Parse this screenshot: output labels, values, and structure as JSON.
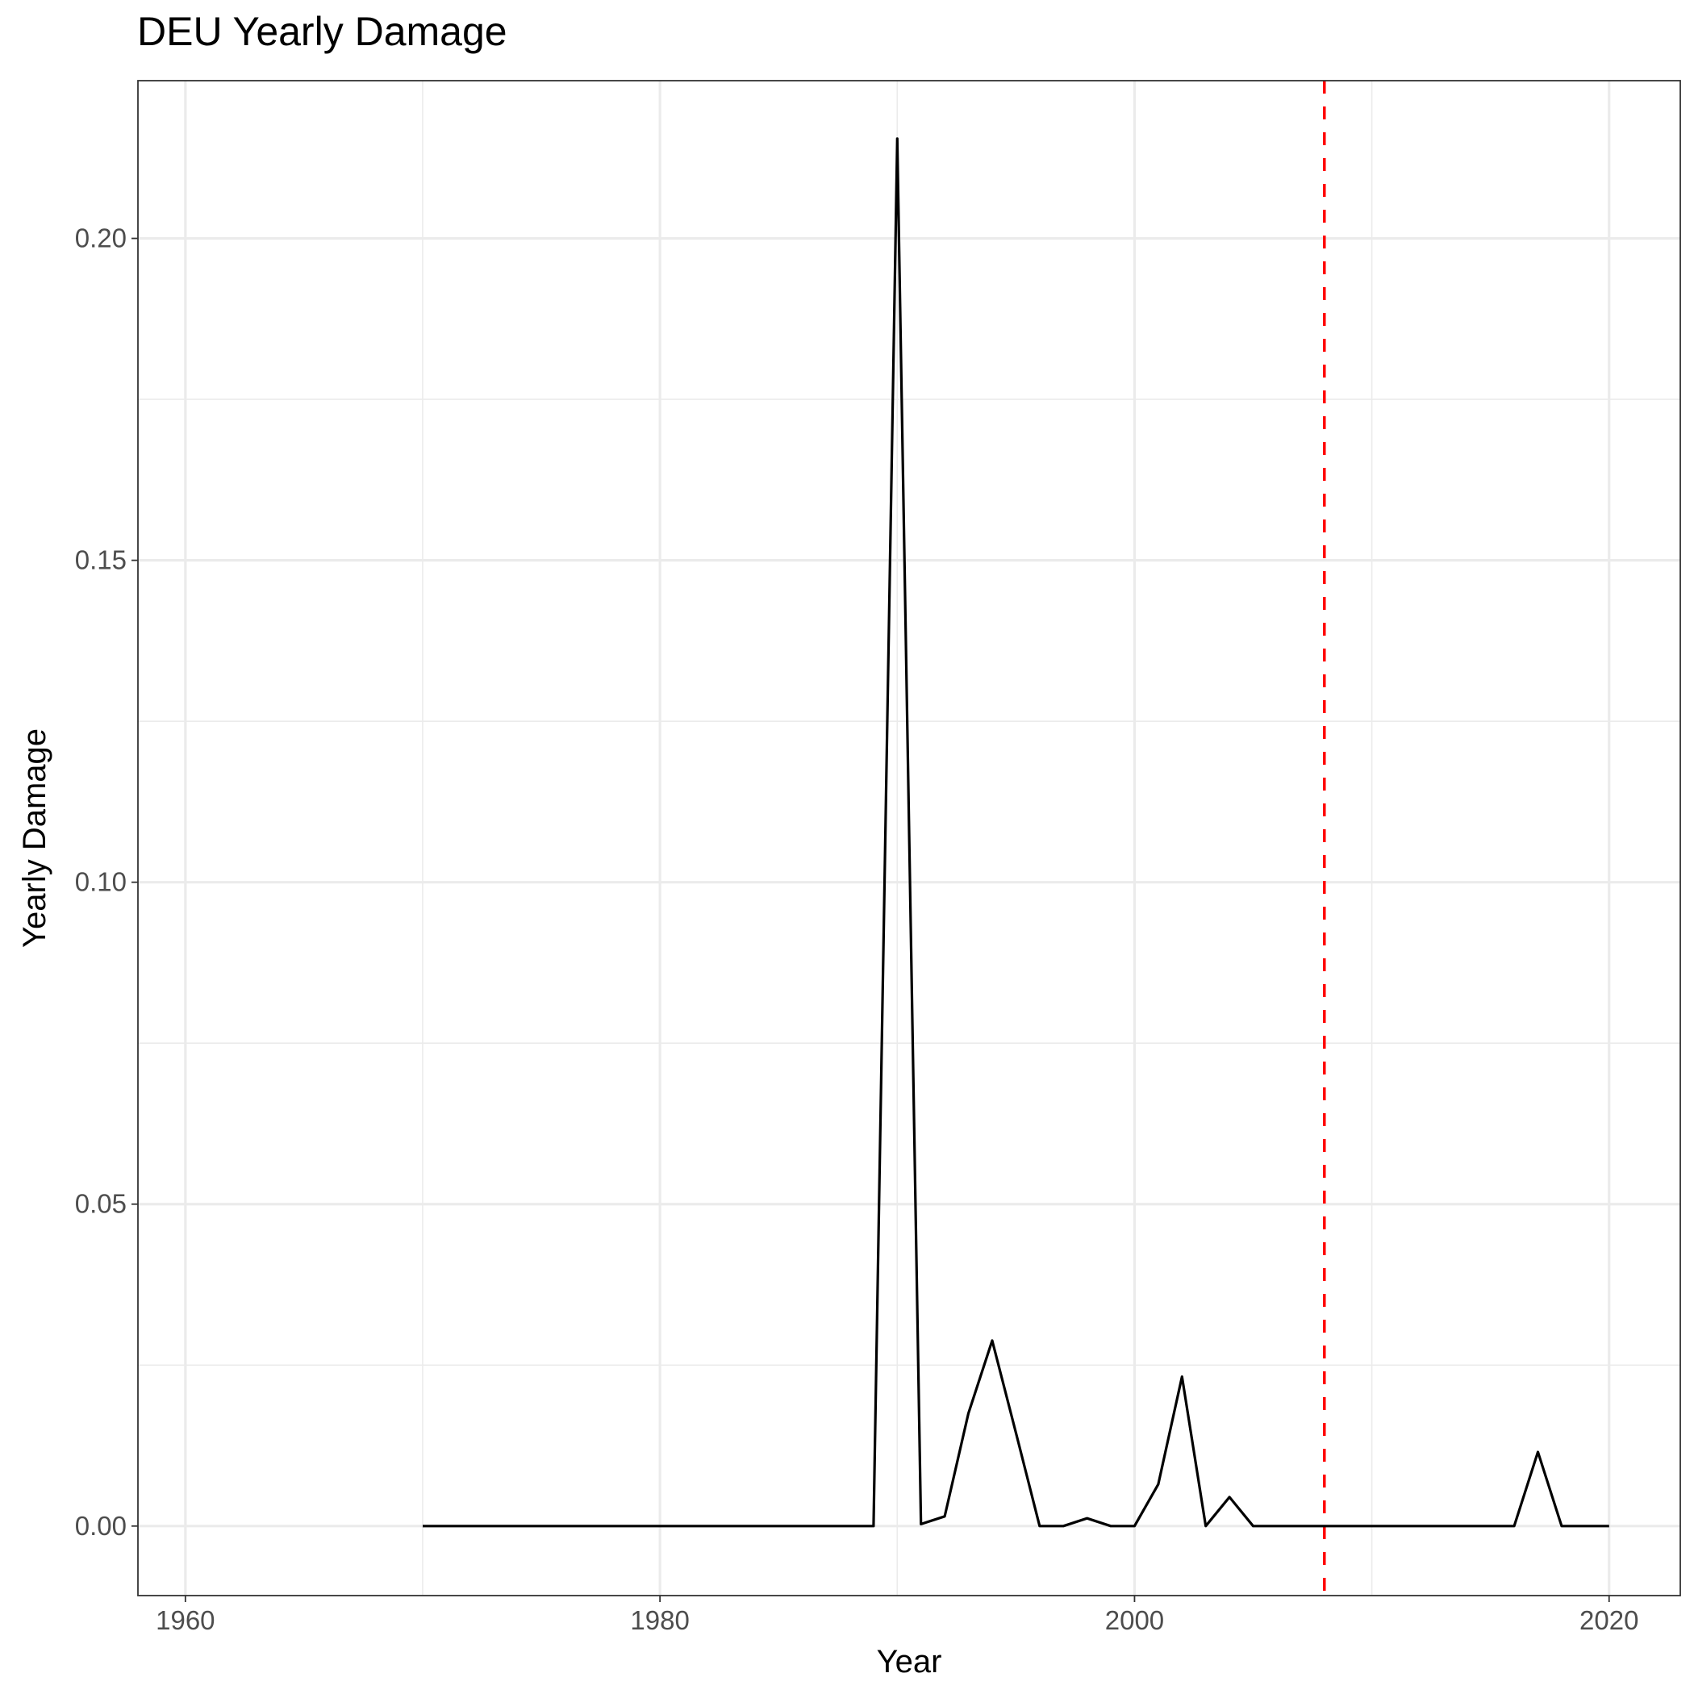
{
  "chart_data": {
    "type": "line",
    "title": "DEU Yearly Damage",
    "xlabel": "Year",
    "ylabel": "Yearly Damage",
    "xlim": [
      1958,
      2023
    ],
    "ylim": [
      -0.0108,
      0.2245
    ],
    "x_ticks": [
      1960,
      1980,
      2000,
      2020
    ],
    "x_tick_labels": [
      "1960",
      "1980",
      "2000",
      "2020"
    ],
    "x_minor_ticks": [
      1970,
      1990,
      2010
    ],
    "y_ticks": [
      0.0,
      0.05,
      0.1,
      0.15,
      0.2
    ],
    "y_tick_labels": [
      "0.00",
      "0.05",
      "0.10",
      "0.15",
      "0.20"
    ],
    "y_minor_ticks": [
      0.025,
      0.075,
      0.125,
      0.175
    ],
    "grid": true,
    "legend": "none",
    "series": [
      {
        "color": "#000000",
        "x": [
          1970,
          1971,
          1972,
          1973,
          1974,
          1975,
          1976,
          1977,
          1978,
          1979,
          1980,
          1981,
          1982,
          1983,
          1984,
          1985,
          1986,
          1987,
          1988,
          1989,
          1990,
          1991,
          1992,
          1993,
          1994,
          1995,
          1996,
          1997,
          1998,
          1999,
          2000,
          2001,
          2002,
          2003,
          2004,
          2005,
          2006,
          2007,
          2008,
          2009,
          2010,
          2011,
          2012,
          2013,
          2014,
          2015,
          2016,
          2017,
          2018,
          2019,
          2020
        ],
        "y": [
          0,
          0,
          0,
          0,
          0,
          0,
          0,
          0,
          0,
          0,
          0,
          0,
          0,
          0,
          0,
          0,
          0,
          0,
          0,
          0,
          0.2155,
          0.0003,
          0.0015,
          0.0175,
          0.0288,
          0.0145,
          0,
          0,
          0.0012,
          0,
          0,
          0.0065,
          0.0232,
          0,
          0.0045,
          0,
          0,
          0,
          0,
          0,
          0,
          0,
          0,
          0,
          0,
          0,
          0,
          0.0115,
          0,
          0,
          0
        ]
      }
    ],
    "reference_lines": [
      {
        "axis": "x",
        "value": 2008,
        "color": "#ff0000",
        "style": "dashed"
      }
    ]
  }
}
